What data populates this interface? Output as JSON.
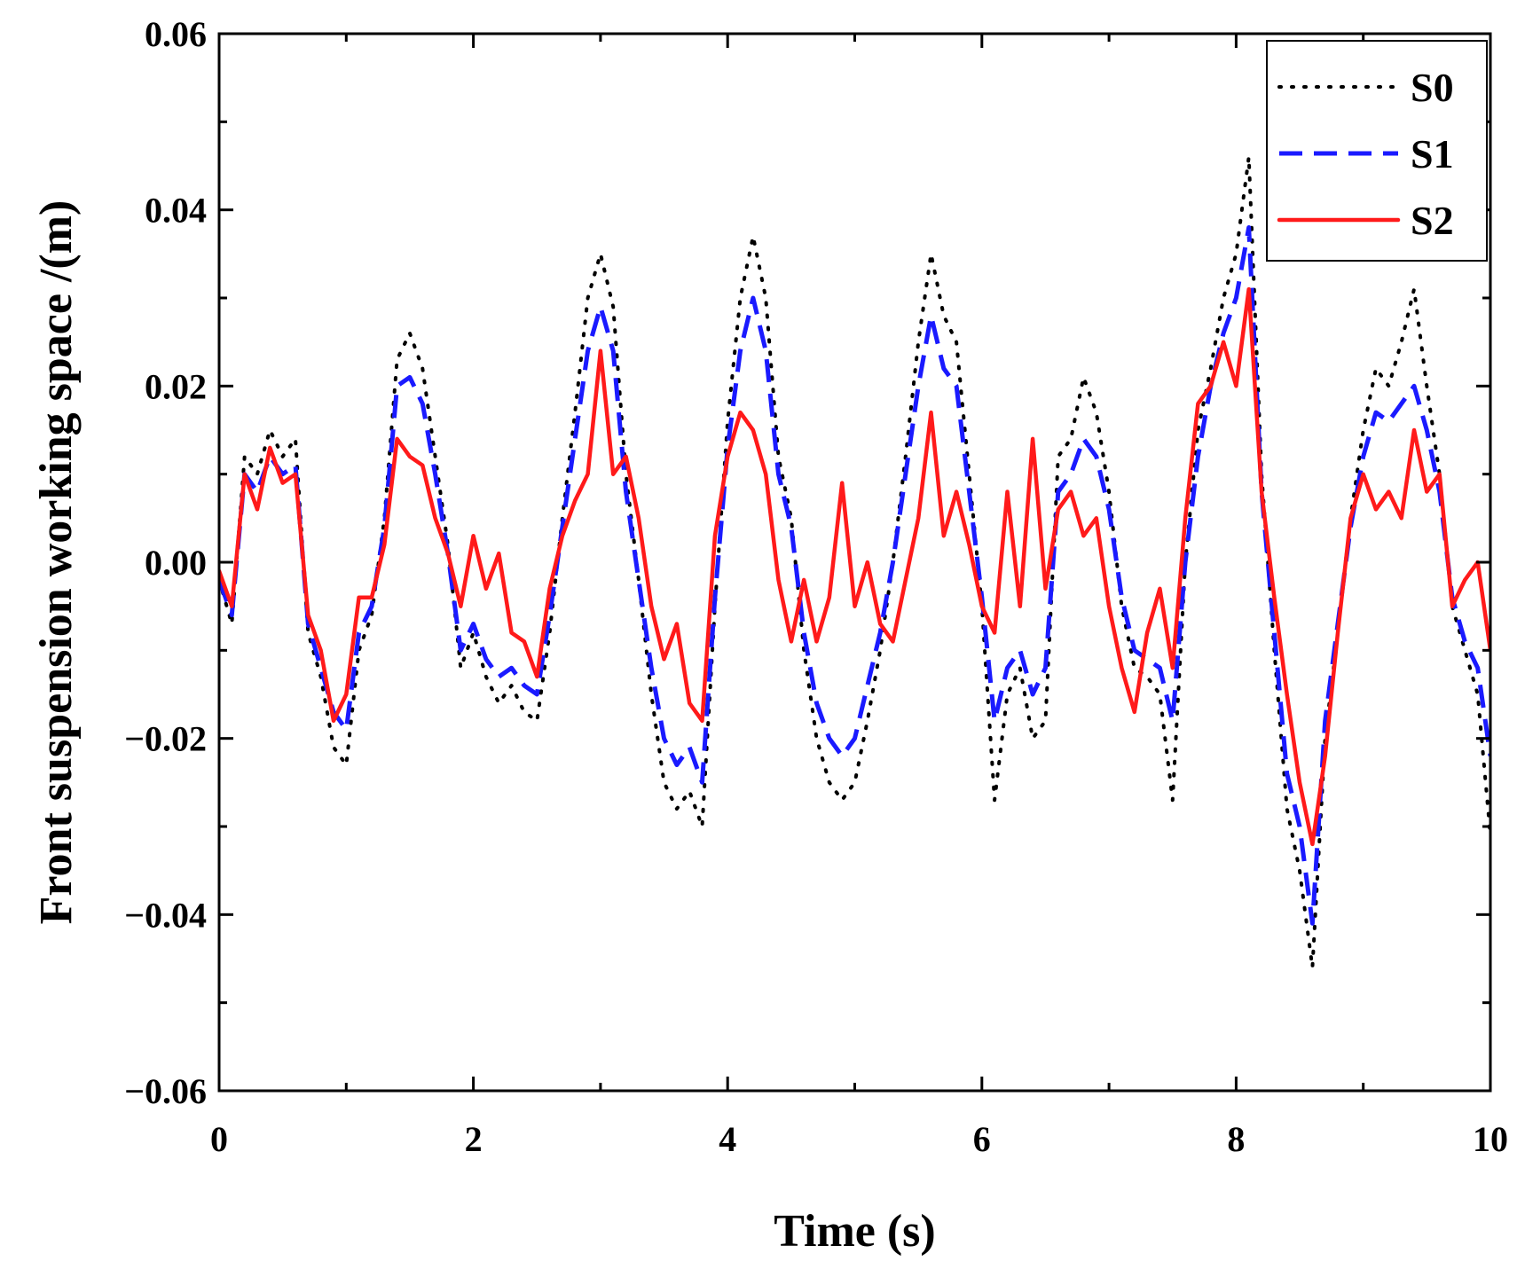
{
  "chart_data": {
    "type": "line",
    "title": "",
    "xlabel": "Time (s)",
    "ylabel": "Front suspension working space /(m)",
    "xlim": [
      0,
      10
    ],
    "ylim": [
      -0.06,
      0.06
    ],
    "xticks": [
      0,
      2,
      4,
      6,
      8,
      10
    ],
    "xtick_labels": [
      "0",
      "2",
      "4",
      "6",
      "8",
      "10"
    ],
    "yticks": [
      -0.06,
      -0.04,
      -0.02,
      0.0,
      0.02,
      0.04,
      0.06
    ],
    "ytick_labels": [
      "−0.06",
      "−0.04",
      "−0.02",
      "0.00",
      "0.02",
      "0.04",
      "0.06"
    ],
    "grid": false,
    "legend_position": "top-right",
    "series": [
      {
        "name": "S0",
        "color": "#000000",
        "style": "dotted",
        "x": [
          0,
          0.1,
          0.2,
          0.3,
          0.4,
          0.5,
          0.6,
          0.7,
          0.8,
          0.9,
          1.0,
          1.1,
          1.2,
          1.3,
          1.4,
          1.5,
          1.6,
          1.7,
          1.8,
          1.9,
          2.0,
          2.1,
          2.2,
          2.3,
          2.4,
          2.5,
          2.6,
          2.7,
          2.8,
          2.9,
          3.0,
          3.1,
          3.2,
          3.3,
          3.4,
          3.5,
          3.6,
          3.7,
          3.8,
          3.9,
          4.0,
          4.1,
          4.2,
          4.3,
          4.4,
          4.5,
          4.6,
          4.7,
          4.8,
          4.9,
          5.0,
          5.1,
          5.2,
          5.3,
          5.4,
          5.5,
          5.6,
          5.7,
          5.8,
          5.9,
          6.0,
          6.1,
          6.2,
          6.3,
          6.4,
          6.5,
          6.6,
          6.7,
          6.8,
          6.9,
          7.0,
          7.1,
          7.2,
          7.3,
          7.4,
          7.5,
          7.6,
          7.7,
          7.8,
          7.9,
          8.0,
          8.1,
          8.2,
          8.3,
          8.4,
          8.5,
          8.6,
          8.7,
          8.8,
          8.9,
          9.0,
          9.1,
          9.2,
          9.3,
          9.4,
          9.5,
          9.6,
          9.7,
          9.8,
          9.9,
          10.0
        ],
        "values": [
          -0.002,
          -0.007,
          0.012,
          0.01,
          0.015,
          0.012,
          0.014,
          -0.008,
          -0.013,
          -0.021,
          -0.023,
          -0.01,
          -0.006,
          0.005,
          0.023,
          0.026,
          0.022,
          0.012,
          0.002,
          -0.012,
          -0.008,
          -0.013,
          -0.016,
          -0.014,
          -0.017,
          -0.018,
          -0.008,
          0.005,
          0.017,
          0.03,
          0.035,
          0.029,
          0.01,
          -0.002,
          -0.015,
          -0.025,
          -0.028,
          -0.026,
          -0.03,
          -0.005,
          0.016,
          0.03,
          0.037,
          0.03,
          0.012,
          0.005,
          -0.01,
          -0.02,
          -0.025,
          -0.027,
          -0.025,
          -0.018,
          -0.01,
          0.0,
          0.012,
          0.025,
          0.035,
          0.028,
          0.025,
          0.01,
          -0.005,
          -0.027,
          -0.015,
          -0.012,
          -0.02,
          -0.018,
          0.012,
          0.014,
          0.021,
          0.017,
          0.008,
          -0.005,
          -0.012,
          -0.013,
          -0.015,
          -0.027,
          0.0,
          0.015,
          0.022,
          0.03,
          0.035,
          0.046,
          0.01,
          -0.01,
          -0.028,
          -0.035,
          -0.046,
          -0.02,
          -0.008,
          0.005,
          0.015,
          0.022,
          0.02,
          0.025,
          0.031,
          0.02,
          0.01,
          -0.005,
          -0.01,
          -0.015,
          -0.031
        ]
      },
      {
        "name": "S1",
        "color": "#1a1aff",
        "style": "dashed",
        "x": [
          0,
          0.1,
          0.2,
          0.3,
          0.4,
          0.5,
          0.6,
          0.7,
          0.8,
          0.9,
          1.0,
          1.1,
          1.2,
          1.3,
          1.4,
          1.5,
          1.6,
          1.7,
          1.8,
          1.9,
          2.0,
          2.1,
          2.2,
          2.3,
          2.4,
          2.5,
          2.6,
          2.7,
          2.8,
          2.9,
          3.0,
          3.1,
          3.2,
          3.3,
          3.4,
          3.5,
          3.6,
          3.7,
          3.8,
          3.9,
          4.0,
          4.1,
          4.2,
          4.3,
          4.4,
          4.5,
          4.6,
          4.7,
          4.8,
          4.9,
          5.0,
          5.1,
          5.2,
          5.3,
          5.4,
          5.5,
          5.6,
          5.7,
          5.8,
          5.9,
          6.0,
          6.1,
          6.2,
          6.3,
          6.4,
          6.5,
          6.6,
          6.7,
          6.8,
          6.9,
          7.0,
          7.1,
          7.2,
          7.3,
          7.4,
          7.5,
          7.6,
          7.7,
          7.8,
          7.9,
          8.0,
          8.1,
          8.2,
          8.3,
          8.4,
          8.5,
          8.6,
          8.7,
          8.8,
          8.9,
          9.0,
          9.1,
          9.2,
          9.3,
          9.4,
          9.5,
          9.6,
          9.7,
          9.8,
          9.9,
          10.0
        ],
        "values": [
          -0.002,
          -0.006,
          0.01,
          0.008,
          0.012,
          0.01,
          0.011,
          -0.007,
          -0.012,
          -0.017,
          -0.019,
          -0.008,
          -0.005,
          0.004,
          0.02,
          0.021,
          0.018,
          0.01,
          0.001,
          -0.01,
          -0.007,
          -0.011,
          -0.013,
          -0.012,
          -0.014,
          -0.015,
          -0.006,
          0.004,
          0.014,
          0.024,
          0.029,
          0.024,
          0.008,
          -0.002,
          -0.012,
          -0.02,
          -0.023,
          -0.021,
          -0.025,
          -0.004,
          0.013,
          0.024,
          0.03,
          0.024,
          0.01,
          0.004,
          -0.008,
          -0.016,
          -0.02,
          -0.022,
          -0.02,
          -0.014,
          -0.008,
          0.0,
          0.01,
          0.02,
          0.028,
          0.022,
          0.02,
          0.008,
          -0.004,
          -0.018,
          -0.012,
          -0.01,
          -0.015,
          -0.012,
          0.008,
          0.01,
          0.014,
          0.012,
          0.006,
          -0.004,
          -0.01,
          -0.011,
          -0.012,
          -0.018,
          0.0,
          0.012,
          0.02,
          0.026,
          0.03,
          0.038,
          0.008,
          -0.008,
          -0.024,
          -0.03,
          -0.041,
          -0.018,
          -0.007,
          0.004,
          0.012,
          0.017,
          0.016,
          0.018,
          0.02,
          0.015,
          0.008,
          -0.004,
          -0.009,
          -0.012,
          -0.022
        ]
      },
      {
        "name": "S2",
        "color": "#ff1a1a",
        "style": "solid",
        "x": [
          0,
          0.1,
          0.2,
          0.3,
          0.4,
          0.5,
          0.6,
          0.7,
          0.8,
          0.9,
          1.0,
          1.1,
          1.2,
          1.3,
          1.4,
          1.5,
          1.6,
          1.7,
          1.8,
          1.9,
          2.0,
          2.1,
          2.2,
          2.3,
          2.4,
          2.5,
          2.6,
          2.7,
          2.8,
          2.9,
          3.0,
          3.1,
          3.2,
          3.3,
          3.4,
          3.5,
          3.6,
          3.7,
          3.8,
          3.9,
          4.0,
          4.1,
          4.2,
          4.3,
          4.4,
          4.5,
          4.6,
          4.7,
          4.8,
          4.9,
          5.0,
          5.1,
          5.2,
          5.3,
          5.4,
          5.5,
          5.6,
          5.7,
          5.8,
          5.9,
          6.0,
          6.1,
          6.2,
          6.3,
          6.4,
          6.5,
          6.6,
          6.7,
          6.8,
          6.9,
          7.0,
          7.1,
          7.2,
          7.3,
          7.4,
          7.5,
          7.6,
          7.7,
          7.8,
          7.9,
          8.0,
          8.1,
          8.2,
          8.3,
          8.4,
          8.5,
          8.6,
          8.7,
          8.8,
          8.9,
          9.0,
          9.1,
          9.2,
          9.3,
          9.4,
          9.5,
          9.6,
          9.7,
          9.8,
          9.9,
          10.0
        ],
        "values": [
          -0.001,
          -0.005,
          0.01,
          0.006,
          0.013,
          0.009,
          0.01,
          -0.006,
          -0.01,
          -0.018,
          -0.015,
          -0.004,
          -0.004,
          0.002,
          0.014,
          0.012,
          0.011,
          0.005,
          0.001,
          -0.005,
          0.003,
          -0.003,
          0.001,
          -0.008,
          -0.009,
          -0.013,
          -0.003,
          0.003,
          0.007,
          0.01,
          0.024,
          0.01,
          0.012,
          0.005,
          -0.005,
          -0.011,
          -0.007,
          -0.016,
          -0.018,
          0.003,
          0.012,
          0.017,
          0.015,
          0.01,
          -0.002,
          -0.009,
          -0.002,
          -0.009,
          -0.004,
          0.009,
          -0.005,
          0.0,
          -0.007,
          -0.009,
          -0.002,
          0.005,
          0.017,
          0.003,
          0.008,
          0.002,
          -0.005,
          -0.008,
          0.008,
          -0.005,
          0.014,
          -0.003,
          0.006,
          0.008,
          0.003,
          0.005,
          -0.005,
          -0.012,
          -0.017,
          -0.008,
          -0.003,
          -0.012,
          0.005,
          0.018,
          0.02,
          0.025,
          0.02,
          0.031,
          0.008,
          -0.004,
          -0.015,
          -0.025,
          -0.032,
          -0.022,
          -0.008,
          0.005,
          0.01,
          0.006,
          0.008,
          0.005,
          0.015,
          0.008,
          0.01,
          -0.005,
          -0.002,
          0.0,
          -0.01
        ]
      }
    ]
  }
}
